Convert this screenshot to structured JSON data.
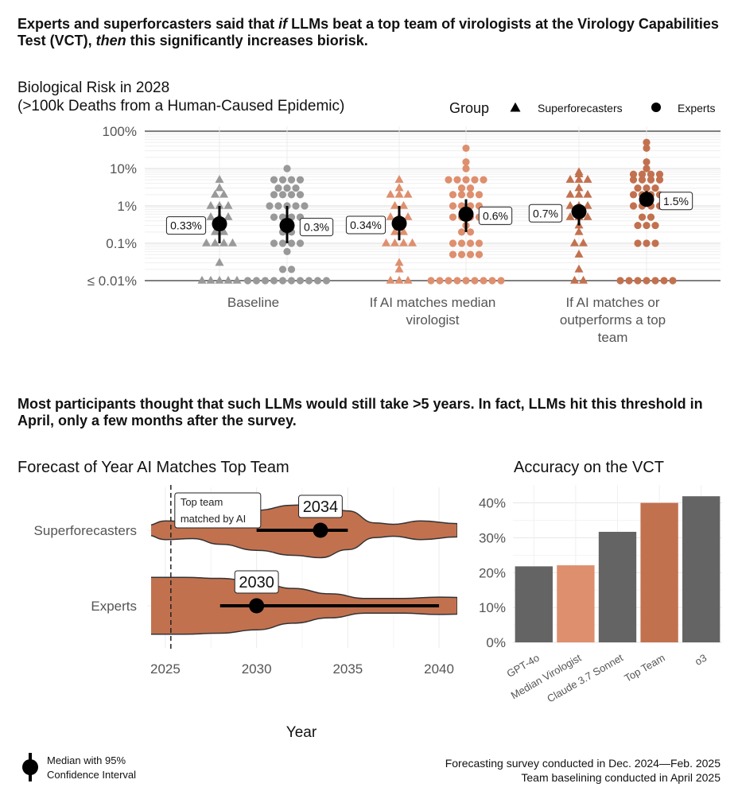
{
  "headline1": {
    "part1": "Experts and superforcasters said that ",
    "if": "if",
    "part2": " LLMs beat a top team of virologists at the Virology Capabilities Test (VCT), ",
    "then": "then",
    "part3": " this significantly increases biorisk."
  },
  "headline2": "Most participants thought that such LLMs would still take >5 years. In fact, LLMs hit this threshold in April, only a few months after the survey.",
  "colors": {
    "grey": "#999999",
    "salmon": "#de8f6e",
    "terracotta": "#c2714f",
    "dark": "#646464"
  },
  "chart_data": [
    {
      "type": "scatter",
      "title_lines": [
        "Biological Risk in 2028",
        "(>100k Deaths from a Human-Caused Epidemic)"
      ],
      "scale": "log",
      "y_ticks": [
        "100%",
        "10%",
        "1%",
        "0.1%",
        "≤ 0.01%"
      ],
      "y_tick_values": [
        100,
        10,
        1,
        0.1,
        0.01
      ],
      "categories": [
        "Baseline",
        "If AI matches median virologist",
        "If AI matches or outperforms a top team"
      ],
      "category_lines": [
        [
          "Baseline"
        ],
        [
          "If AI matches median",
          "virologist"
        ],
        [
          "If AI matches or",
          "outperforms a top",
          "team"
        ]
      ],
      "legend": {
        "title": "Group",
        "entries": [
          {
            "name": "Superforecasters",
            "shape": "triangle"
          },
          {
            "name": "Experts",
            "shape": "circle"
          }
        ],
        "position": "top-right"
      },
      "medians": [
        {
          "category": "Baseline",
          "group": "Superforecasters",
          "value": 0.33,
          "low": 0.1,
          "high": 1.0,
          "label": "0.33%"
        },
        {
          "category": "Baseline",
          "group": "Experts",
          "value": 0.3,
          "low": 0.1,
          "high": 1.0,
          "label": "0.3%"
        },
        {
          "category": "If AI matches median virologist",
          "group": "Superforecasters",
          "value": 0.34,
          "low": 0.12,
          "high": 1.0,
          "label": "0.34%"
        },
        {
          "category": "If AI matches median virologist",
          "group": "Experts",
          "value": 0.6,
          "low": 0.2,
          "high": 1.5,
          "label": "0.6%"
        },
        {
          "category": "If AI matches or outperforms a top team",
          "group": "Superforecasters",
          "value": 0.7,
          "low": 0.3,
          "high": 1.0,
          "label": "0.7%"
        },
        {
          "category": "If AI matches or outperforms a top team",
          "group": "Experts",
          "value": 1.5,
          "low": 1.0,
          "high": 2.5,
          "label": "1.5%"
        }
      ],
      "points": [
        {
          "category": "Baseline",
          "group": "Superforecasters",
          "values": [
            5,
            3,
            2,
            2,
            1,
            1,
            1,
            0.5,
            0.5,
            0.5,
            0.3,
            0.2,
            0.2,
            0.1,
            0.1,
            0.1,
            0.1,
            0.03,
            0.01,
            0.01,
            0.01,
            0.01,
            0.01
          ]
        },
        {
          "category": "Baseline",
          "group": "Experts",
          "values": [
            10,
            5,
            5,
            5,
            5,
            3,
            3,
            3,
            2,
            2,
            2,
            2,
            1,
            1,
            1,
            1,
            1,
            0.5,
            0.5,
            0.5,
            0.5,
            0.3,
            0.2,
            0.2,
            0.1,
            0.1,
            0.1,
            0.1,
            0.06,
            0.02,
            0.02,
            0.01,
            0.01,
            0.01,
            0.01,
            0.01,
            0.01,
            0.01,
            0.01,
            0.01,
            0.01
          ]
        },
        {
          "category": "If AI matches median virologist",
          "group": "Superforecasters",
          "values": [
            5,
            3,
            2,
            2,
            2,
            1,
            1,
            0.5,
            0.5,
            0.5,
            0.3,
            0.2,
            0.2,
            0.1,
            0.1,
            0.1,
            0.1,
            0.03,
            0.02,
            0.01,
            0.01,
            0.01
          ]
        },
        {
          "category": "If AI matches median virologist",
          "group": "Experts",
          "values": [
            35,
            15,
            10,
            5,
            5,
            5,
            5,
            5,
            3,
            3,
            2,
            2,
            2,
            2,
            1,
            1,
            1,
            1,
            0.5,
            0.5,
            0.5,
            0.5,
            0.3,
            0.2,
            0.2,
            0.1,
            0.1,
            0.1,
            0.1,
            0.05,
            0.05,
            0.05,
            0.05,
            0.01,
            0.01,
            0.01,
            0.01,
            0.01,
            0.01,
            0.01,
            0.01,
            0.01
          ]
        },
        {
          "category": "If AI matches or outperforms a top team",
          "group": "Superforecasters",
          "values": [
            8,
            7,
            5,
            5,
            5,
            3,
            2,
            2,
            2,
            1,
            1,
            1,
            0.7,
            0.5,
            0.5,
            0.5,
            0.3,
            0.2,
            0.1,
            0.1,
            0.05,
            0.02,
            0.01,
            0.01
          ]
        },
        {
          "category": "If AI matches or outperforms a top team",
          "group": "Experts",
          "values": [
            50,
            35,
            15,
            10,
            7,
            7,
            7,
            7,
            5,
            5,
            5,
            5,
            3,
            3,
            3,
            2,
            2,
            2,
            2,
            1,
            1,
            1,
            1,
            0.5,
            0.5,
            0.3,
            0.3,
            0.3,
            0.1,
            0.1,
            0.1,
            0.01,
            0.01,
            0.01,
            0.01,
            0.01,
            0.01,
            0.01
          ]
        }
      ]
    },
    {
      "type": "violin",
      "title": "Forecast of Year AI Matches Top Team",
      "xlabel": "Year",
      "xlim": [
        2024,
        2041
      ],
      "x_ticks": [
        2025,
        2030,
        2035,
        2040
      ],
      "categories": [
        "Superforecasters",
        "Experts"
      ],
      "reference_line": {
        "x": 2025.3,
        "label_lines": [
          "Top team",
          "matched by AI"
        ]
      },
      "medians": [
        {
          "group": "Superforecasters",
          "value": 2034,
          "plotted_at": 2033.5,
          "low": 2030,
          "high": 2035,
          "label": "2034"
        },
        {
          "group": "Experts",
          "value": 2030,
          "low": 2028,
          "high": 2040,
          "label": "2030"
        }
      ],
      "density": {
        "Superforecasters": [
          [
            2024,
            0.15
          ],
          [
            2025,
            0.28
          ],
          [
            2026.5,
            0.25
          ],
          [
            2028,
            0.42
          ],
          [
            2030,
            0.6
          ],
          [
            2032,
            0.75
          ],
          [
            2033.5,
            0.82
          ],
          [
            2035,
            0.58
          ],
          [
            2036.5,
            0.22
          ],
          [
            2037.5,
            0.18
          ],
          [
            2039,
            0.28
          ],
          [
            2041,
            0.2
          ]
        ],
        "Experts": [
          [
            2024,
            0.85
          ],
          [
            2026,
            0.85
          ],
          [
            2028,
            0.82
          ],
          [
            2030,
            0.72
          ],
          [
            2032,
            0.52
          ],
          [
            2034,
            0.36
          ],
          [
            2036,
            0.22
          ],
          [
            2038,
            0.22
          ],
          [
            2040,
            0.26
          ],
          [
            2041,
            0.25
          ]
        ]
      }
    },
    {
      "type": "bar",
      "title": "Accuracy on the VCT",
      "categories": [
        "GPT-4o",
        "Median Virologist",
        "Claude 3.7 Sonnet",
        "Top Team",
        "o3"
      ],
      "values": [
        21.8,
        22.1,
        31.7,
        40.0,
        41.9
      ],
      "bar_colors": [
        "#646464",
        "#de8f6e",
        "#646464",
        "#c2714f",
        "#646464"
      ],
      "ylim": [
        0,
        44
      ],
      "y_ticks": [
        "0%",
        "10%",
        "20%",
        "30%",
        "40%"
      ]
    }
  ],
  "bottom_legend": {
    "lines": [
      "Median with 95%",
      "Confidence Interval"
    ]
  },
  "footer": {
    "line1": "Forecasting survey conducted in Dec. 2024—Feb. 2025",
    "line2": "Team baselining conducted in April 2025"
  }
}
